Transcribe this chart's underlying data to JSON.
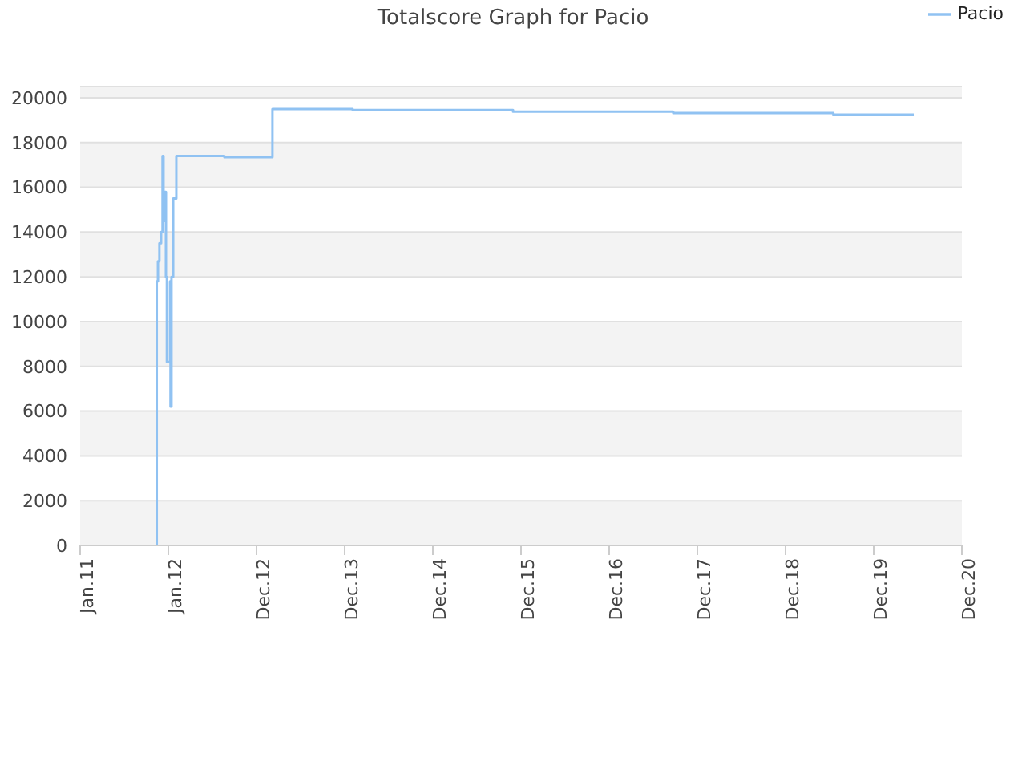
{
  "chart_data": {
    "type": "step",
    "title": "Totalscore Graph for Pacio",
    "x": [
      "2011-11-13",
      "2011-11-14",
      "2011-11-19",
      "2011-11-25",
      "2011-12-02",
      "2011-12-08",
      "2011-12-12",
      "2011-12-18",
      "2011-12-22",
      "2011-12-26",
      "2012-01-08",
      "2012-01-10",
      "2012-01-14",
      "2012-01-21",
      "2012-02-03",
      "2012-08-20",
      "2013-03-07",
      "2014-02-02",
      "2015-11-28",
      "2017-09-21",
      "2019-07-16",
      "2020-06-13"
    ],
    "series": [
      {
        "name": "Pacio",
        "color": "#90c2f2",
        "values": [
          0,
          11800,
          12700,
          13500,
          14000,
          17400,
          14500,
          15800,
          12000,
          8200,
          11800,
          6200,
          12000,
          15500,
          17400,
          17350,
          19500,
          19450,
          19380,
          19320,
          19250,
          19250
        ]
      }
    ],
    "xlim": [
      "2011-01-01",
      "2020-12-29"
    ],
    "xticks": [
      {
        "value": "2011-01-01",
        "label": "Jan.11"
      },
      {
        "value": "2012-01-01",
        "label": "Jan.12"
      },
      {
        "value": "2012-12-31",
        "label": "Dec.12"
      },
      {
        "value": "2013-12-31",
        "label": "Dec.13"
      },
      {
        "value": "2014-12-31",
        "label": "Dec.14"
      },
      {
        "value": "2015-12-31",
        "label": "Dec.15"
      },
      {
        "value": "2016-12-30",
        "label": "Dec.16"
      },
      {
        "value": "2017-12-30",
        "label": "Dec.17"
      },
      {
        "value": "2018-12-30",
        "label": "Dec.18"
      },
      {
        "value": "2019-12-30",
        "label": "Dec.19"
      },
      {
        "value": "2020-12-29",
        "label": "Dec.20"
      }
    ],
    "ylim": [
      0,
      20500
    ],
    "yticks": [
      0,
      2000,
      4000,
      6000,
      8000,
      10000,
      12000,
      14000,
      16000,
      18000,
      20000
    ],
    "grid": "y",
    "legend": "top right",
    "marker": "none",
    "line_style": "solid"
  }
}
